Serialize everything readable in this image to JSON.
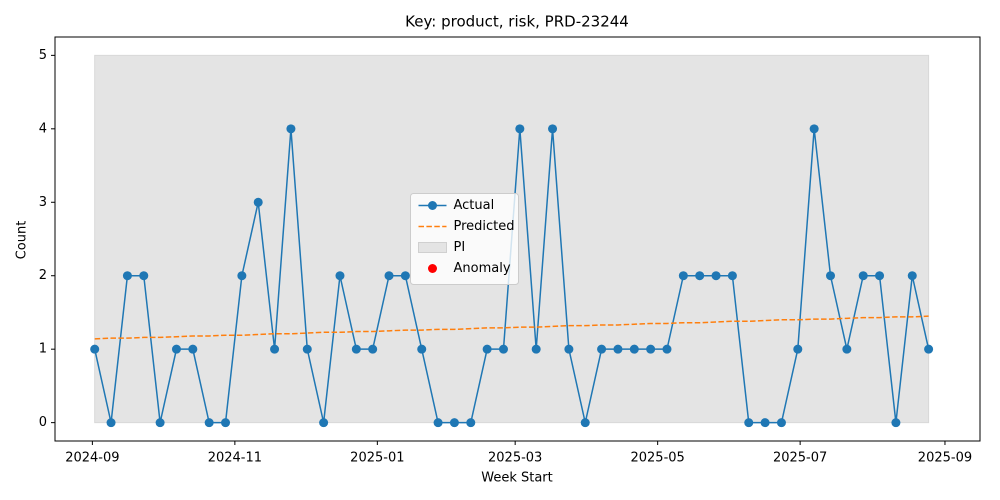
{
  "chart_data": {
    "type": "line",
    "title": "Key: product, risk, PRD-23244",
    "xlabel": "Week Start",
    "ylabel": "Count",
    "x": [
      "2024-09-02",
      "2024-09-09",
      "2024-09-16",
      "2024-09-23",
      "2024-09-30",
      "2024-10-07",
      "2024-10-14",
      "2024-10-21",
      "2024-10-28",
      "2024-11-04",
      "2024-11-11",
      "2024-11-18",
      "2024-11-25",
      "2024-12-02",
      "2024-12-09",
      "2024-12-16",
      "2024-12-23",
      "2024-12-30",
      "2025-01-06",
      "2025-01-13",
      "2025-01-20",
      "2025-01-27",
      "2025-02-03",
      "2025-02-10",
      "2025-02-17",
      "2025-02-24",
      "2025-03-03",
      "2025-03-10",
      "2025-03-17",
      "2025-03-24",
      "2025-03-31",
      "2025-04-07",
      "2025-04-14",
      "2025-04-21",
      "2025-04-28",
      "2025-05-05",
      "2025-05-12",
      "2025-05-19",
      "2025-05-26",
      "2025-06-02",
      "2025-06-09",
      "2025-06-16",
      "2025-06-23",
      "2025-06-30",
      "2025-07-07",
      "2025-07-14",
      "2025-07-21",
      "2025-07-28",
      "2025-08-04",
      "2025-08-11",
      "2025-08-18",
      "2025-08-25"
    ],
    "series": [
      {
        "name": "Actual",
        "color": "#1f77b4",
        "style": "solid",
        "marker": true,
        "values": [
          1,
          0,
          2,
          2,
          0,
          1,
          1,
          0,
          0,
          2,
          3,
          1,
          4,
          1,
          0,
          2,
          1,
          1,
          2,
          2,
          1,
          0,
          0,
          0,
          1,
          1,
          4,
          1,
          4,
          1,
          0,
          1,
          1,
          1,
          1,
          1,
          2,
          2,
          2,
          2,
          0,
          0,
          0,
          1,
          4,
          2,
          1,
          2,
          2,
          0,
          2,
          1
        ]
      },
      {
        "name": "Predicted",
        "color": "#ff7f0e",
        "style": "dashed",
        "marker": false,
        "values": [
          1.14,
          1.15,
          1.15,
          1.16,
          1.16,
          1.17,
          1.18,
          1.18,
          1.19,
          1.19,
          1.2,
          1.21,
          1.21,
          1.22,
          1.23,
          1.23,
          1.24,
          1.24,
          1.25,
          1.26,
          1.26,
          1.27,
          1.27,
          1.28,
          1.29,
          1.29,
          1.3,
          1.3,
          1.31,
          1.32,
          1.32,
          1.33,
          1.33,
          1.34,
          1.35,
          1.35,
          1.36,
          1.36,
          1.37,
          1.38,
          1.38,
          1.39,
          1.4,
          1.4,
          1.41,
          1.41,
          1.42,
          1.43,
          1.43,
          1.44,
          1.44,
          1.45
        ]
      },
      {
        "name": "Anomaly",
        "color": "#ff0000",
        "style": "scatter",
        "marker": true,
        "values": [
          null,
          null,
          null,
          null,
          null,
          null,
          null,
          null,
          null,
          null,
          null,
          null,
          null,
          null,
          null,
          null,
          null,
          null,
          null,
          null,
          null,
          null,
          null,
          null,
          null,
          null,
          null,
          null,
          null,
          null,
          null,
          null,
          null,
          null,
          null,
          null,
          null,
          null,
          null,
          null,
          null,
          null,
          null,
          null,
          null,
          null,
          null,
          null,
          null,
          null,
          null,
          null
        ]
      }
    ],
    "band": {
      "name": "PI",
      "color": "#e4e4e4",
      "lower": 0,
      "upper": 5
    },
    "xlim": [
      "2024-08-16",
      "2025-09-16"
    ],
    "xticks": [
      {
        "value": "2024-09-01",
        "label": "2024-09"
      },
      {
        "value": "2024-11-01",
        "label": "2024-11"
      },
      {
        "value": "2025-01-01",
        "label": "2025-01"
      },
      {
        "value": "2025-03-01",
        "label": "2025-03"
      },
      {
        "value": "2025-05-01",
        "label": "2025-05"
      },
      {
        "value": "2025-07-01",
        "label": "2025-07"
      },
      {
        "value": "2025-09-01",
        "label": "2025-09"
      }
    ],
    "ylim": [
      -0.25,
      5.25
    ],
    "yticks": [
      0,
      1,
      2,
      3,
      4,
      5
    ],
    "grid": false,
    "legend": "center"
  }
}
